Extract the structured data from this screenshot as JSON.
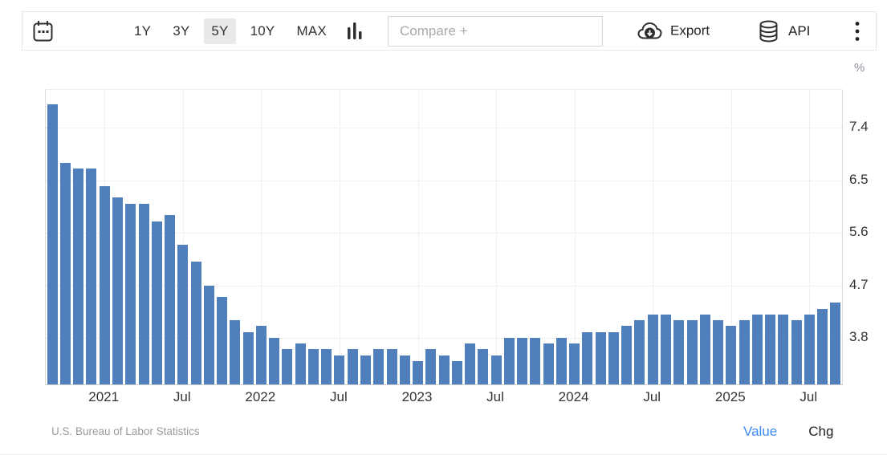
{
  "toolbar": {
    "ranges": [
      {
        "label": "1Y",
        "active": false
      },
      {
        "label": "3Y",
        "active": false
      },
      {
        "label": "5Y",
        "active": true
      },
      {
        "label": "10Y",
        "active": false
      },
      {
        "label": "MAX",
        "active": false
      }
    ],
    "compare_placeholder": "Compare +",
    "export_label": "Export",
    "api_label": "API"
  },
  "chart_data": {
    "type": "bar",
    "ylabel": "%",
    "x": [
      "Sep 2020",
      "Oct 2020",
      "Nov 2020",
      "Dec 2020",
      "Jan 2021",
      "Feb 2021",
      "Mar 2021",
      "Apr 2021",
      "May 2021",
      "Jun 2021",
      "Jul 2021",
      "Aug 2021",
      "Sep 2021",
      "Oct 2021",
      "Nov 2021",
      "Dec 2021",
      "Jan 2022",
      "Feb 2022",
      "Mar 2022",
      "Apr 2022",
      "May 2022",
      "Jun 2022",
      "Jul 2022",
      "Aug 2022",
      "Sep 2022",
      "Oct 2022",
      "Nov 2022",
      "Dec 2022",
      "Jan 2023",
      "Feb 2023",
      "Mar 2023",
      "Apr 2023",
      "May 2023",
      "Jun 2023",
      "Jul 2023",
      "Aug 2023",
      "Sep 2023",
      "Oct 2023",
      "Nov 2023",
      "Dec 2023",
      "Jan 2024",
      "Feb 2024",
      "Mar 2024",
      "Apr 2024",
      "May 2024",
      "Jun 2024",
      "Jul 2024",
      "Aug 2024",
      "Sep 2024",
      "Oct 2024",
      "Nov 2024",
      "Dec 2024",
      "Jan 2025",
      "Feb 2025",
      "Mar 2025",
      "Apr 2025",
      "May 2025",
      "Jun 2025",
      "Jul 2025",
      "Aug 2025",
      "Sep 2025"
    ],
    "values": [
      7.8,
      6.8,
      6.7,
      6.7,
      6.4,
      6.2,
      6.1,
      6.1,
      5.8,
      5.9,
      5.4,
      5.1,
      4.7,
      4.5,
      4.1,
      3.9,
      4.0,
      3.8,
      3.6,
      3.7,
      3.6,
      3.6,
      3.5,
      3.6,
      3.5,
      3.6,
      3.6,
      3.5,
      3.4,
      3.6,
      3.5,
      3.4,
      3.7,
      3.6,
      3.5,
      3.8,
      3.8,
      3.8,
      3.7,
      3.8,
      3.7,
      3.9,
      3.9,
      3.9,
      4.0,
      4.1,
      4.2,
      4.2,
      4.1,
      4.1,
      4.2,
      4.1,
      4.0,
      4.1,
      4.2,
      4.2,
      4.2,
      4.1,
      4.2,
      4.3,
      4.4
    ],
    "ylim": [
      3.0,
      8.05
    ],
    "yticks": [
      3.8,
      4.7,
      5.6,
      6.5,
      7.4
    ],
    "xticks": [
      {
        "index": 4,
        "label": "2021"
      },
      {
        "index": 10,
        "label": "Jul"
      },
      {
        "index": 16,
        "label": "2022"
      },
      {
        "index": 22,
        "label": "Jul"
      },
      {
        "index": 28,
        "label": "2023"
      },
      {
        "index": 34,
        "label": "Jul"
      },
      {
        "index": 40,
        "label": "2024"
      },
      {
        "index": 46,
        "label": "Jul"
      },
      {
        "index": 52,
        "label": "2025"
      },
      {
        "index": 58,
        "label": "Jul"
      }
    ],
    "grid": true,
    "legend_position": "none",
    "bar_color": "#4f80bc"
  },
  "footer": {
    "source": "U.S. Bureau of Labor Statistics",
    "value_label": "Value",
    "chg_label": "Chg",
    "value_color": "#3d8af7"
  }
}
